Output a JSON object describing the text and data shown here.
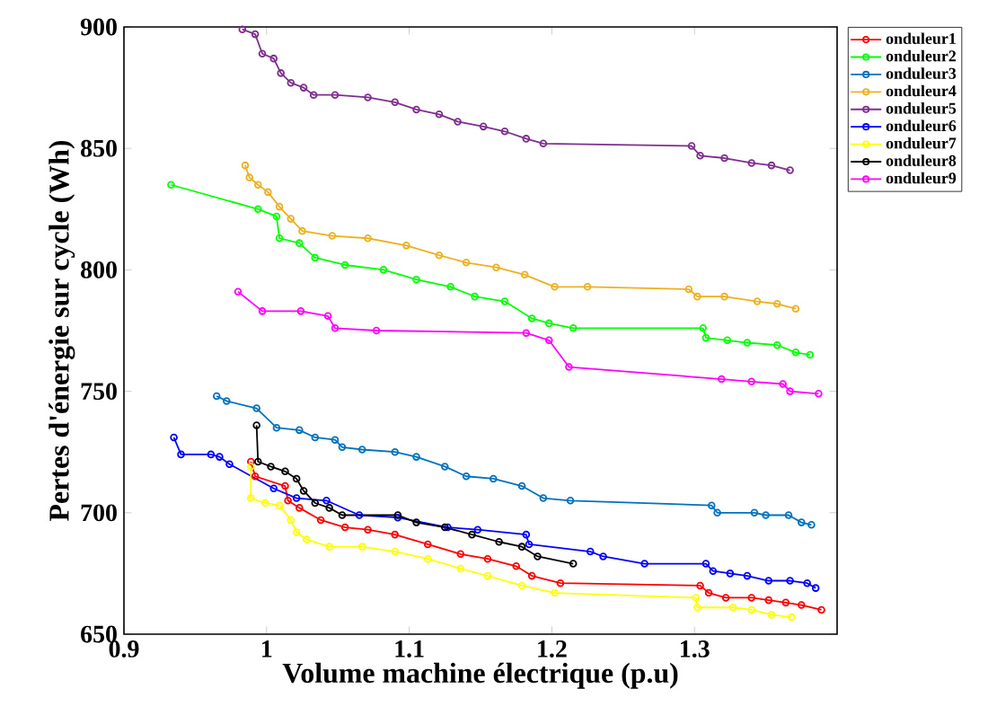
{
  "chart_data": {
    "type": "line",
    "xlabel": "Volume machine électrique (p.u)",
    "ylabel": "Pertes d'énergie sur cycle (Wh)",
    "xlim": [
      0.9,
      1.4
    ],
    "xticks": [
      0.9,
      1,
      1.1,
      1.2,
      1.3
    ],
    "ylim": [
      650,
      900
    ],
    "yticks": [
      650,
      700,
      750,
      800,
      850,
      900
    ],
    "grid": false,
    "legend": "top right",
    "marker": "circle",
    "line_style": "solid",
    "series": [
      {
        "name": "onduleur1",
        "color": "#ff0000",
        "x": [
          0.989,
          0.992,
          1.013,
          1.015,
          1.023,
          1.038,
          1.055,
          1.071,
          1.09,
          1.113,
          1.136,
          1.155,
          1.175,
          1.186,
          1.206,
          1.304,
          1.31,
          1.322,
          1.34,
          1.352,
          1.364,
          1.375,
          1.389
        ],
        "values": [
          721,
          715,
          711,
          705,
          702,
          697,
          694,
          693,
          691,
          687,
          683,
          681,
          678,
          674,
          671,
          670,
          667,
          665,
          665,
          664,
          663,
          662,
          660
        ]
      },
      {
        "name": "onduleur2",
        "color": "#00ff00",
        "x": [
          0.933,
          0.994,
          1.007,
          1.009,
          1.023,
          1.034,
          1.055,
          1.082,
          1.105,
          1.129,
          1.146,
          1.167,
          1.186,
          1.198,
          1.215,
          1.306,
          1.308,
          1.323,
          1.337,
          1.358,
          1.371,
          1.381
        ],
        "values": [
          835,
          825,
          822,
          813,
          811,
          805,
          802,
          800,
          796,
          793,
          789,
          787,
          780,
          778,
          776,
          776,
          772,
          771,
          770,
          769,
          766,
          765
        ]
      },
      {
        "name": "onduleur3",
        "color": "#0072bd",
        "x": [
          0.965,
          0.972,
          0.993,
          1.007,
          1.023,
          1.034,
          1.048,
          1.053,
          1.067,
          1.09,
          1.105,
          1.125,
          1.14,
          1.159,
          1.179,
          1.194,
          1.213,
          1.312,
          1.316,
          1.342,
          1.35,
          1.366,
          1.375,
          1.382
        ],
        "values": [
          748,
          746,
          743,
          735,
          734,
          731,
          730,
          727,
          726,
          725,
          723,
          719,
          715,
          714,
          711,
          706,
          705,
          703,
          700,
          700,
          699,
          699,
          696,
          695
        ]
      },
      {
        "name": "onduleur4",
        "color": "#edb120",
        "x": [
          0.985,
          0.988,
          0.994,
          1.001,
          1.009,
          1.017,
          1.025,
          1.046,
          1.071,
          1.098,
          1.121,
          1.14,
          1.161,
          1.181,
          1.202,
          1.225,
          1.296,
          1.302,
          1.321,
          1.344,
          1.358,
          1.371
        ],
        "values": [
          843,
          838,
          835,
          832,
          826,
          821,
          816,
          814,
          813,
          810,
          806,
          803,
          801,
          798,
          793,
          793,
          792,
          789,
          789,
          787,
          786,
          784
        ]
      },
      {
        "name": "onduleur5",
        "color": "#7e2f8e",
        "x": [
          0.983,
          0.992,
          0.997,
          1.005,
          1.01,
          1.017,
          1.026,
          1.033,
          1.048,
          1.071,
          1.09,
          1.105,
          1.121,
          1.134,
          1.152,
          1.167,
          1.182,
          1.194,
          1.298,
          1.304,
          1.321,
          1.34,
          1.354,
          1.367
        ],
        "values": [
          899,
          897,
          889,
          887,
          881,
          877,
          875,
          872,
          872,
          871,
          869,
          866,
          864,
          861,
          859,
          857,
          854,
          852,
          851,
          847,
          846,
          844,
          843,
          841
        ]
      },
      {
        "name": "onduleur6",
        "color": "#0000ff",
        "x": [
          0.935,
          0.94,
          0.961,
          0.967,
          0.974,
          1.005,
          1.021,
          1.042,
          1.065,
          1.092,
          1.127,
          1.148,
          1.182,
          1.184,
          1.227,
          1.236,
          1.265,
          1.308,
          1.313,
          1.325,
          1.337,
          1.352,
          1.367,
          1.379,
          1.385
        ],
        "values": [
          731,
          724,
          724,
          723,
          720,
          710,
          706,
          705,
          699,
          698,
          694,
          693,
          691,
          687,
          684,
          682,
          679,
          679,
          676,
          675,
          674,
          672,
          672,
          671,
          669
        ]
      },
      {
        "name": "onduleur7",
        "color": "#ffff00",
        "x": [
          0.989,
          0.989,
          0.999,
          1.009,
          1.017,
          1.021,
          1.028,
          1.044,
          1.067,
          1.09,
          1.113,
          1.136,
          1.155,
          1.179,
          1.202,
          1.301,
          1.302,
          1.327,
          1.34,
          1.354,
          1.368
        ],
        "values": [
          719,
          706,
          704,
          703,
          697,
          692,
          689,
          686,
          686,
          684,
          681,
          677,
          674,
          670,
          667,
          665,
          661,
          661,
          660,
          658,
          657
        ]
      },
      {
        "name": "onduleur8",
        "color": "#000000",
        "x": [
          0.993,
          0.994,
          1.003,
          1.013,
          1.021,
          1.026,
          1.034,
          1.044,
          1.053,
          1.092,
          1.105,
          1.125,
          1.144,
          1.163,
          1.179,
          1.19,
          1.215
        ],
        "values": [
          736,
          721,
          719,
          717,
          714,
          709,
          704,
          702,
          699,
          699,
          696,
          694,
          691,
          688,
          686,
          682,
          679
        ]
      },
      {
        "name": "onduleur9",
        "color": "#ff00ff",
        "x": [
          0.98,
          0.997,
          1.024,
          1.043,
          1.048,
          1.077,
          1.182,
          1.198,
          1.212,
          1.319,
          1.34,
          1.362,
          1.367,
          1.387
        ],
        "values": [
          791,
          783,
          783,
          781,
          776,
          775,
          774,
          771,
          760,
          755,
          754,
          753,
          750,
          749
        ]
      }
    ]
  }
}
